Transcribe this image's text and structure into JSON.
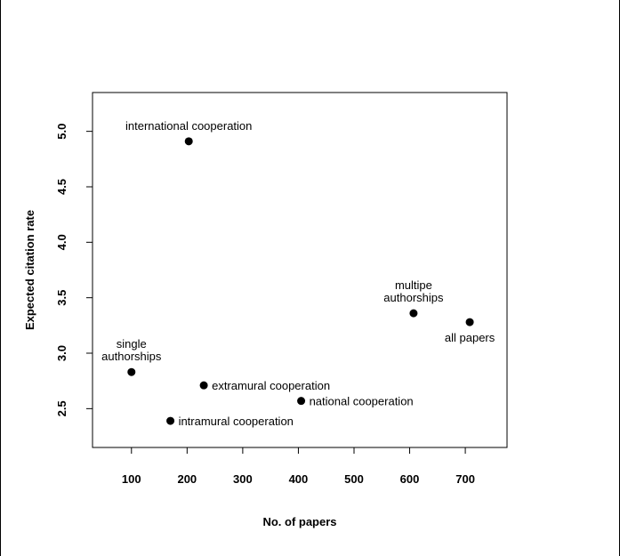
{
  "chart_data": {
    "type": "scatter",
    "title": "",
    "xlabel": "No. of papers",
    "ylabel": "Expected citation rate",
    "xlim": [
      30,
      775
    ],
    "ylim": [
      2.15,
      5.35
    ],
    "xticks": [
      100,
      200,
      300,
      400,
      500,
      600,
      700
    ],
    "yticks": [
      2.5,
      3.0,
      3.5,
      4.0,
      4.5,
      5.0
    ],
    "xtick_labels": [
      "100",
      "200",
      "300",
      "400",
      "500",
      "600",
      "700"
    ],
    "ytick_labels": [
      "2.5",
      "3.0",
      "3.5",
      "4.0",
      "4.5",
      "5.0"
    ],
    "grid": false,
    "legend": "none",
    "point_color": "#000000",
    "points": [
      {
        "x": 100,
        "y": 2.83,
        "label": [
          "single",
          "authorships"
        ],
        "label_pos": "above"
      },
      {
        "x": 203,
        "y": 4.91,
        "label": [
          "international cooperation"
        ],
        "label_pos": "above"
      },
      {
        "x": 170,
        "y": 2.39,
        "label": [
          "intramural cooperation"
        ],
        "label_pos": "right"
      },
      {
        "x": 230,
        "y": 2.71,
        "label": [
          "extramural cooperation"
        ],
        "label_pos": "right"
      },
      {
        "x": 405,
        "y": 2.57,
        "label": [
          "national cooperation"
        ],
        "label_pos": "right"
      },
      {
        "x": 607,
        "y": 3.36,
        "label": [
          "multipe",
          "authorships"
        ],
        "label_pos": "above"
      },
      {
        "x": 708,
        "y": 3.28,
        "label": [
          "all papers"
        ],
        "label_pos": "below"
      }
    ]
  }
}
